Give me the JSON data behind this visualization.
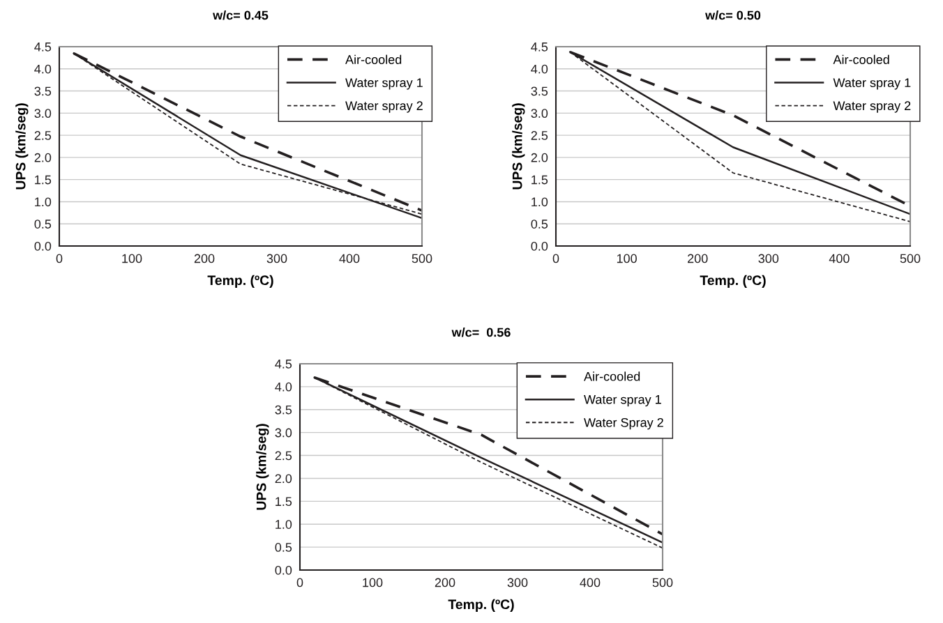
{
  "chart_data": [
    {
      "type": "line",
      "title": "w/c= 0.45",
      "xlabel": "Temp. (ºC)",
      "ylabel": "UPS (km/seg)",
      "x": [
        20,
        250,
        500
      ],
      "xlim": [
        0,
        500
      ],
      "xticks": [
        0,
        100,
        200,
        300,
        400,
        500
      ],
      "ylim": [
        0,
        4.5
      ],
      "yticks": [
        {
          "value": 0,
          "label": "0.0"
        },
        0.5,
        {
          "value": 1,
          "label": "1.0"
        },
        1.5,
        {
          "value": 2,
          "label": "2.0"
        },
        2.5,
        {
          "value": 3,
          "label": "3.0"
        },
        3.5,
        {
          "value": 4,
          "label": "4.0"
        },
        4.5
      ],
      "grid": "y",
      "legend": "top right",
      "marker": "none",
      "series": [
        {
          "name": "Air-cooled",
          "color": "#231f20",
          "line_style": "dashed",
          "values": [
            4.35,
            2.47,
            0.8
          ]
        },
        {
          "name": "Water spray 1",
          "color": "#231f20",
          "line_style": "solid",
          "values": [
            4.35,
            2.05,
            0.63
          ]
        },
        {
          "name": "Water spray 2",
          "color": "#231f20",
          "line_style": "dotted",
          "values": [
            4.35,
            1.85,
            0.72
          ]
        }
      ]
    },
    {
      "type": "line",
      "title": "w/c= 0.50",
      "xlabel": "Temp. (ºC)",
      "ylabel": "UPS (km/seg)",
      "x": [
        20,
        250,
        500
      ],
      "xlim": [
        0,
        500
      ],
      "xticks": [
        0,
        100,
        200,
        300,
        400,
        500
      ],
      "ylim": [
        0,
        4.5
      ],
      "yticks": [
        {
          "value": 0,
          "label": "0.0"
        },
        0.5,
        {
          "value": 1,
          "label": "1.0"
        },
        1.5,
        {
          "value": 2,
          "label": "2.0"
        },
        2.5,
        {
          "value": 3,
          "label": "3.0"
        },
        3.5,
        {
          "value": 4,
          "label": "4.0"
        },
        4.5
      ],
      "grid": "y",
      "legend": "top right",
      "marker": "none",
      "series": [
        {
          "name": "Air-cooled",
          "color": "#231f20",
          "line_style": "dashed",
          "values": [
            4.38,
            2.95,
            0.9
          ]
        },
        {
          "name": "Water spray 1",
          "color": "#231f20",
          "line_style": "solid",
          "values": [
            4.38,
            2.23,
            0.72
          ]
        },
        {
          "name": "Water spray 2",
          "color": "#231f20",
          "line_style": "dotted",
          "values": [
            4.38,
            1.65,
            0.55
          ]
        }
      ]
    },
    {
      "type": "line",
      "title": "w/c=  0.56",
      "xlabel": "Temp. (ºC)",
      "ylabel": "UPS (km/seg)",
      "x": [
        20,
        250,
        500
      ],
      "xlim": [
        0,
        500
      ],
      "xticks": [
        0,
        100,
        200,
        300,
        400,
        500
      ],
      "ylim": [
        0,
        4.5
      ],
      "yticks": [
        {
          "value": 0,
          "label": "0.0"
        },
        0.5,
        {
          "value": 1,
          "label": "1.0"
        },
        1.5,
        {
          "value": 2,
          "label": "2.0"
        },
        2.5,
        {
          "value": 3,
          "label": "3.0"
        },
        3.5,
        {
          "value": 4,
          "label": "4.0"
        },
        4.5
      ],
      "grid": "y",
      "legend": "top right",
      "marker": "none",
      "series": [
        {
          "name": "Air-cooled",
          "color": "#231f20",
          "line_style": "dashed",
          "values": [
            4.2,
            2.95,
            0.78
          ]
        },
        {
          "name": "Water spray 1",
          "color": "#231f20",
          "line_style": "solid",
          "values": [
            4.2,
            2.45,
            0.6
          ]
        },
        {
          "name": "Water Spray 2",
          "color": "#231f20",
          "line_style": "dotted",
          "values": [
            4.2,
            2.35,
            0.48
          ]
        }
      ]
    }
  ]
}
